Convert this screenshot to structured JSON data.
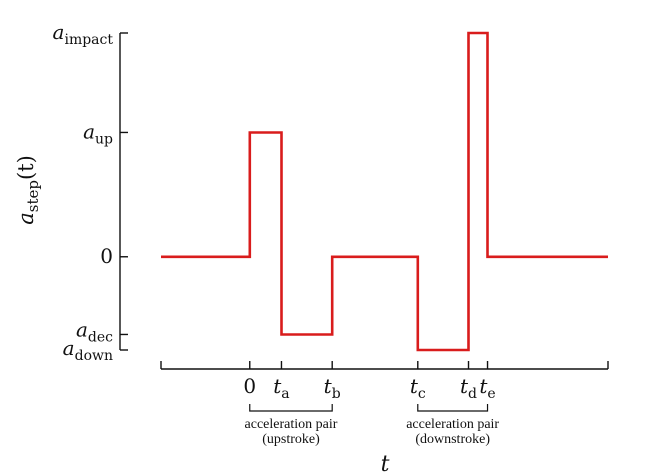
{
  "chart_data": {
    "type": "line",
    "title": "",
    "xlabel": "t",
    "ylabel": {
      "base": "a",
      "sub": "step",
      "arg": "(t)"
    },
    "series_color": "#d91c1c",
    "y_ticks": [
      {
        "key": "a_impact",
        "value": 3.6,
        "base": "a",
        "sub": "impact"
      },
      {
        "key": "a_up",
        "value": 2.0,
        "base": "a",
        "sub": "up"
      },
      {
        "key": "zero",
        "value": 0,
        "text": "0"
      },
      {
        "key": "a_dec",
        "value": -1.25,
        "base": "a",
        "sub": "dec"
      },
      {
        "key": "a_down",
        "value": -1.5,
        "base": "a",
        "sub": "down"
      }
    ],
    "x_ticks": [
      {
        "key": "zero",
        "value": 0,
        "text": "0"
      },
      {
        "key": "t_a",
        "value": 0.5,
        "base": "t",
        "sub": "a"
      },
      {
        "key": "t_b",
        "value": 1.3,
        "base": "t",
        "sub": "b"
      },
      {
        "key": "t_c",
        "value": 2.65,
        "base": "t",
        "sub": "c"
      },
      {
        "key": "t_d",
        "value": 3.45,
        "base": "t",
        "sub": "d"
      },
      {
        "key": "t_e",
        "value": 3.75,
        "base": "t",
        "sub": "e"
      }
    ],
    "xlim": [
      -1.4,
      5.65
    ],
    "ylim": [
      -1.5,
      3.6
    ],
    "series": [
      {
        "x": [
          -1.4,
          0,
          0,
          0.5,
          0.5,
          1.3,
          1.3,
          2.65,
          2.65,
          3.45,
          3.45,
          3.75,
          3.75,
          5.65
        ],
        "y": [
          0,
          0,
          2.0,
          2.0,
          -1.25,
          -1.25,
          0,
          0,
          -1.5,
          -1.5,
          3.6,
          3.6,
          0,
          0
        ]
      }
    ],
    "annotations": [
      {
        "key": "pair_up",
        "from": 0,
        "to": 1.3,
        "line1": "acceleration pair",
        "line2": "(upstroke)"
      },
      {
        "key": "pair_down",
        "from": 2.65,
        "to": 3.75,
        "line1": "acceleration pair",
        "line2": "(downstroke)"
      }
    ]
  }
}
